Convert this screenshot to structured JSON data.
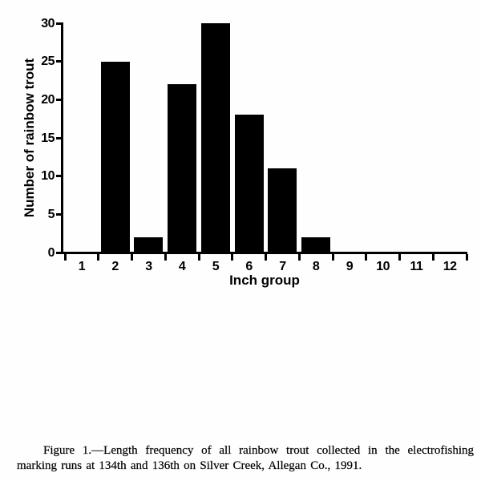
{
  "chart_data": {
    "type": "bar",
    "title": "",
    "xlabel": "Inch group",
    "ylabel": "Number of rainbow trout",
    "categories": [
      "1",
      "2",
      "3",
      "4",
      "5",
      "6",
      "7",
      "8",
      "9",
      "10",
      "11",
      "12"
    ],
    "values": [
      0,
      25,
      2,
      22,
      30,
      18,
      11,
      2,
      0,
      0,
      0,
      0
    ],
    "ylim": [
      0,
      30
    ],
    "yticks": [
      0,
      5,
      10,
      15,
      20,
      25,
      30
    ],
    "bar_color": "#000000",
    "axis_color": "#000000",
    "grid": false,
    "legend": false
  },
  "caption": {
    "line1": "Figure 1.—Length frequency of all rainbow trout collected in the electrofishing",
    "line2": "marking runs at 134th and 136th on Silver Creek, Allegan Co., 1991."
  }
}
